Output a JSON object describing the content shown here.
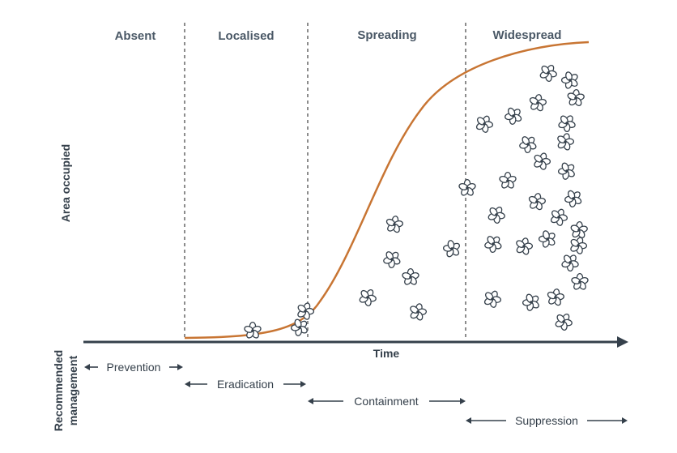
{
  "stages": [
    "Absent",
    "Localised",
    "Spreading",
    "Widespread"
  ],
  "axes": {
    "x_label": "Time",
    "y_label": "Area occupied",
    "lower_label_line1": "Recommended",
    "lower_label_line2": "management"
  },
  "management": [
    "Prevention",
    "Eradication",
    "Containment",
    "Suppression"
  ],
  "colors": {
    "curve": "#c87533",
    "axis": "#35404b",
    "divider": "#8c8c8c",
    "stage_text": "#4a5866",
    "flower_outline": "#35404b"
  },
  "icons": {
    "plant": "flower-icon",
    "arrow": "double-arrow-icon"
  }
}
